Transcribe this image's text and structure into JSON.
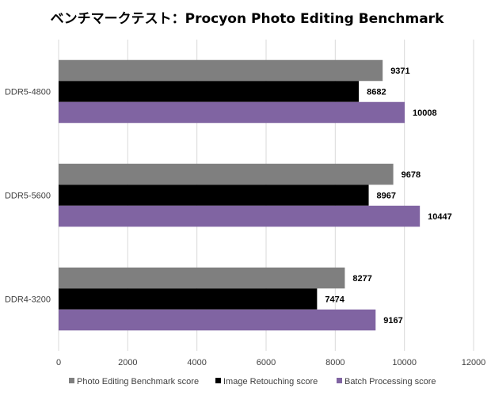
{
  "chart_data": {
    "type": "bar",
    "orientation": "horizontal",
    "title": "ベンチマークテスト：Procyon Photo Editing Benchmark",
    "categories": [
      "DDR5-4800",
      "DDR5-5600",
      "DDR4-3200"
    ],
    "series": [
      {
        "name": "Photo Editing Benchmark score",
        "color": "#7f7f7f",
        "values": [
          9371,
          9678,
          8277
        ]
      },
      {
        "name": "Image Retouching score",
        "color": "#000000",
        "values": [
          8682,
          8967,
          7474
        ]
      },
      {
        "name": "Batch Processing score",
        "color": "#8064a2",
        "values": [
          10008,
          10447,
          9167
        ]
      }
    ],
    "xlim": [
      0,
      12000
    ],
    "xticks": [
      0,
      2000,
      4000,
      6000,
      8000,
      10000,
      12000
    ],
    "grid": true,
    "legend_position": "bottom"
  }
}
